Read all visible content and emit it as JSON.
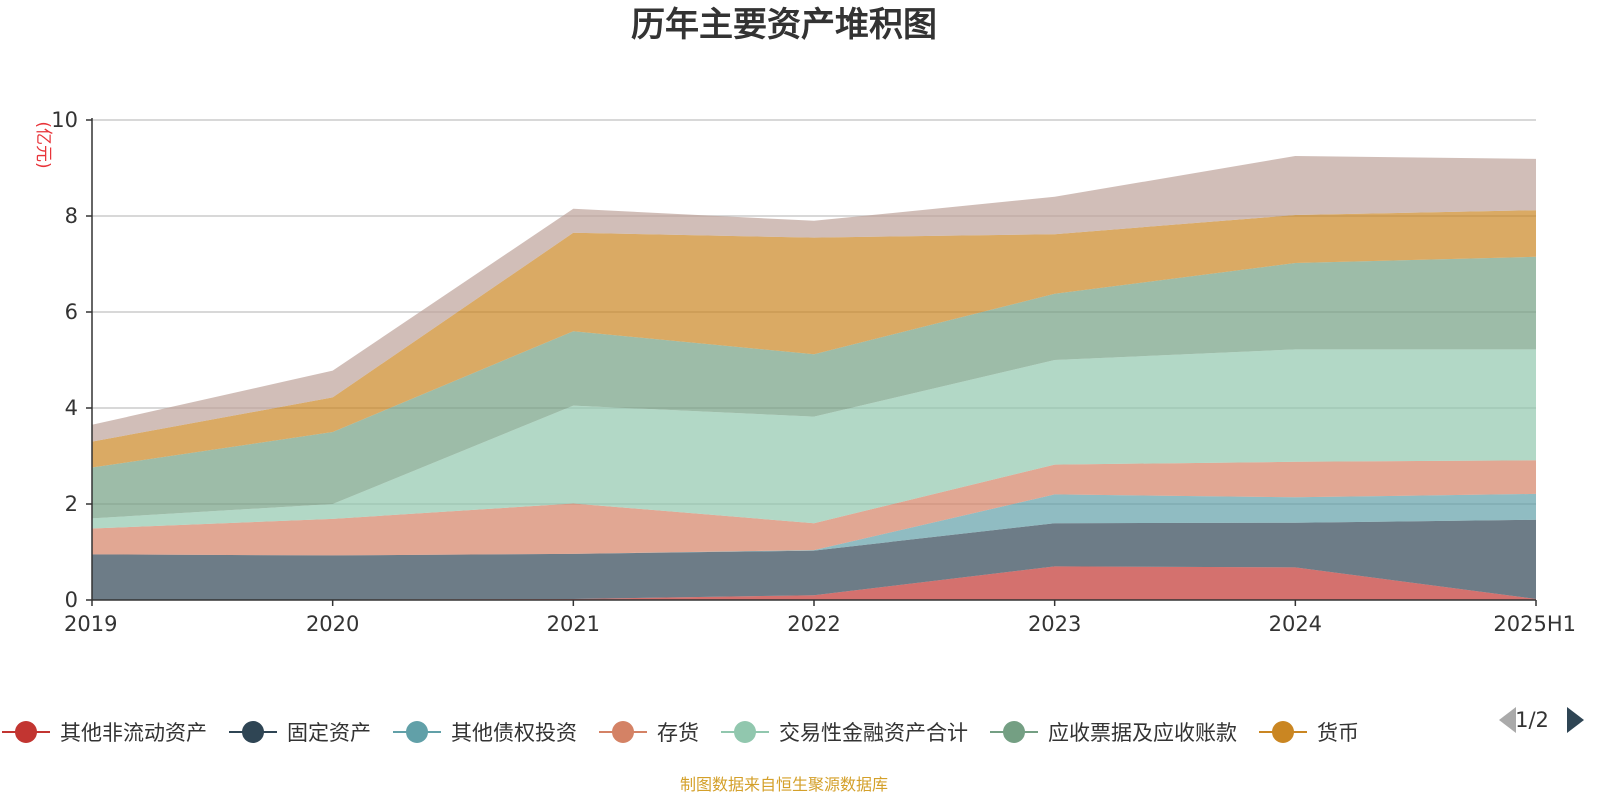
{
  "chart_data": {
    "type": "area",
    "stacked": true,
    "title": "历年主要资产堆积图",
    "unit_label": "(亿元)",
    "x": [
      "2019",
      "2020",
      "2021",
      "2022",
      "2023",
      "2024",
      "2025H1"
    ],
    "ylim": [
      0,
      10
    ],
    "yticks": [
      0,
      2,
      4,
      6,
      8,
      10
    ],
    "grid": true,
    "legend_position": "bottom",
    "series": [
      {
        "name": "其他非流动资产",
        "color": "#c23531",
        "values": [
          0.01,
          0.01,
          0.02,
          0.1,
          0.7,
          0.68,
          0.02
        ]
      },
      {
        "name": "固定资产",
        "color": "#2f4554",
        "values": [
          0.94,
          0.92,
          0.94,
          0.93,
          0.9,
          0.93,
          1.65
        ]
      },
      {
        "name": "其他债权投资",
        "color": "#61a0a8",
        "values": [
          0.0,
          0.0,
          0.0,
          0.01,
          0.6,
          0.53,
          0.54
        ]
      },
      {
        "name": "存货",
        "color": "#d48265",
        "values": [
          0.54,
          0.76,
          1.05,
          0.56,
          0.62,
          0.74,
          0.7
        ]
      },
      {
        "name": "交易性金融资产合计",
        "color": "#91c7ae",
        "values": [
          0.21,
          0.31,
          2.04,
          2.22,
          2.18,
          2.34,
          2.31
        ]
      },
      {
        "name": "应收票据及应收账款",
        "color": "#749f83",
        "values": [
          1.06,
          1.5,
          1.55,
          1.3,
          1.38,
          1.8,
          1.93
        ]
      },
      {
        "name": "货币",
        "color": "#ca8622",
        "values": [
          0.54,
          0.72,
          2.05,
          2.43,
          1.24,
          1.0,
          0.97
        ]
      },
      {
        "name": "",
        "color": "#bda29a",
        "values": [
          0.35,
          0.56,
          0.5,
          0.35,
          0.78,
          1.23,
          1.07
        ]
      }
    ]
  },
  "legend": {
    "page_indicator": "1/2"
  },
  "footer": {
    "source": "制图数据来自恒生聚源数据库"
  }
}
